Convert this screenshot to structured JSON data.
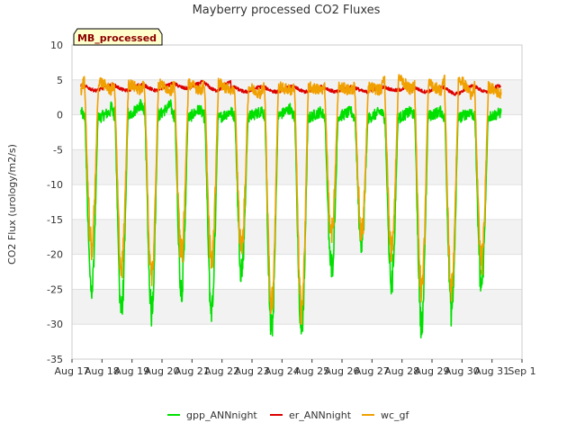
{
  "chart_data": {
    "type": "line",
    "title": "Mayberry processed CO2 Fluxes",
    "xlabel": "",
    "ylabel": "CO2 Flux (urology/m2/s)",
    "badge": "MB_processed",
    "x_tick_labels": [
      "Aug 17",
      "Aug 18",
      "Aug 19",
      "Aug 20",
      "Aug 21",
      "Aug 22",
      "Aug 23",
      "Aug 24",
      "Aug 25",
      "Aug 26",
      "Aug 27",
      "Aug 28",
      "Aug 29",
      "Aug 30",
      "Aug 31",
      "Sep 1"
    ],
    "xlim": [
      0,
      15
    ],
    "ylim": [
      -35,
      10
    ],
    "y_ticks": [
      10,
      5,
      0,
      -5,
      -10,
      -15,
      -20,
      -25,
      -30,
      -35
    ],
    "grid": true,
    "legend_position": "bottom",
    "data_x_range": [
      0.3,
      14.3
    ],
    "series": [
      {
        "name": "gpp_ANNnight",
        "color": "#00e000",
        "day_values": [
          0.5,
          1.5,
          1.5,
          1.0,
          0.5,
          0.5,
          1.0,
          0.5,
          0.5,
          0.5,
          0.5,
          0.5,
          0.5,
          0.3
        ],
        "night_values": [
          -0.5,
          -0.3,
          -0.2,
          -0.5,
          -0.5,
          -0.3,
          -0.2,
          -0.5,
          -0.3,
          -0.5,
          -0.5,
          -0.2,
          -0.5,
          -0.3
        ],
        "daily_min": [
          -25,
          -28,
          -28,
          -25,
          -28,
          -22,
          -31,
          -31,
          -22,
          -18,
          -24,
          -30,
          -28,
          -24.5
        ]
      },
      {
        "name": "er_ANNnight",
        "color": "#dd0000",
        "day_values": [
          3.5,
          3.5,
          3.5,
          3.8,
          3.5,
          3.3,
          3.3,
          3.3,
          3.3,
          3.3,
          3.5,
          3.3,
          3.0,
          3.3
        ],
        "night_values": [
          4.2,
          4.3,
          4.3,
          4.5,
          4.7,
          4.0,
          4.0,
          4.0,
          4.0,
          4.0,
          4.0,
          4.0,
          4.0,
          4.2
        ]
      },
      {
        "name": "wc_gf",
        "color": "#f0a000",
        "day_values": [
          3.5,
          3.5,
          3.5,
          3.5,
          3.5,
          3.0,
          3.5,
          3.5,
          3.5,
          3.5,
          3.5,
          3.5,
          3.0,
          3.0
        ],
        "night_values": [
          5.0,
          4.5,
          4.5,
          4.5,
          4.5,
          4.0,
          4.0,
          4.0,
          4.0,
          4.0,
          5.5,
          4.5,
          5.5,
          4.0
        ],
        "daily_min": [
          -19,
          -22,
          -23,
          -20,
          -21,
          -19,
          -27,
          -28,
          -17,
          -17,
          -19,
          -25,
          -25,
          -21
        ]
      }
    ]
  }
}
